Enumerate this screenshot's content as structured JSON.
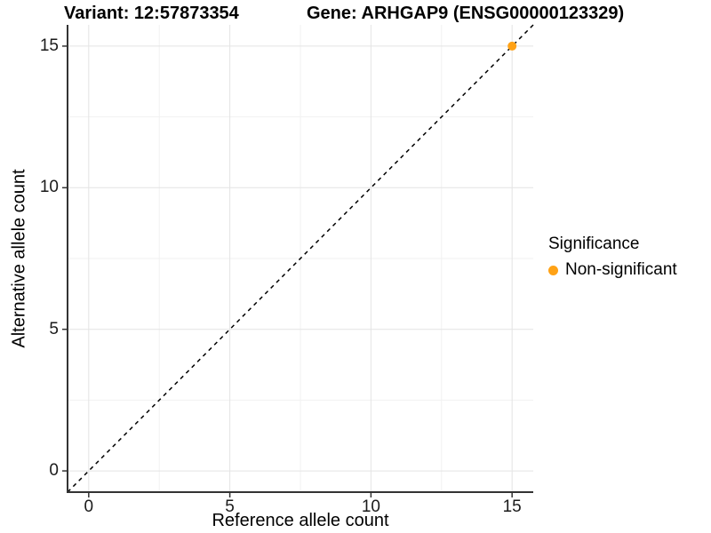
{
  "chart_data": {
    "type": "scatter",
    "title_parts": [
      "Variant: 12:57873354",
      "Gene: ARHGAP9 (ENSG00000123329)"
    ],
    "xlabel": "Reference allele count",
    "ylabel": "Alternative allele count",
    "xlim": [
      -0.75,
      15.75
    ],
    "ylim": [
      -0.75,
      15.75
    ],
    "x_ticks": [
      0,
      5,
      10,
      15
    ],
    "y_ticks": [
      0,
      5,
      10,
      15
    ],
    "x_minor_ticks": [
      2.5,
      7.5,
      12.5
    ],
    "y_minor_ticks": [
      2.5,
      7.5,
      12.5
    ],
    "grid": true,
    "series": [
      {
        "name": "Non-significant",
        "color": "#FFA216",
        "points": [
          {
            "x": 15,
            "y": 15
          }
        ]
      }
    ],
    "reference_line": {
      "kind": "identity",
      "style": "dashed",
      "color": "#000000"
    },
    "legend": {
      "title": "Significance",
      "position": "right",
      "items": [
        {
          "label": "Non-significant",
          "color": "#FFA216"
        }
      ]
    },
    "colors": {
      "grid_major": "#E4E4E4",
      "grid_minor": "#F1F1F1",
      "axis_line": "#333333",
      "tick_mark": "#333333",
      "background": "#FFFFFF"
    }
  }
}
